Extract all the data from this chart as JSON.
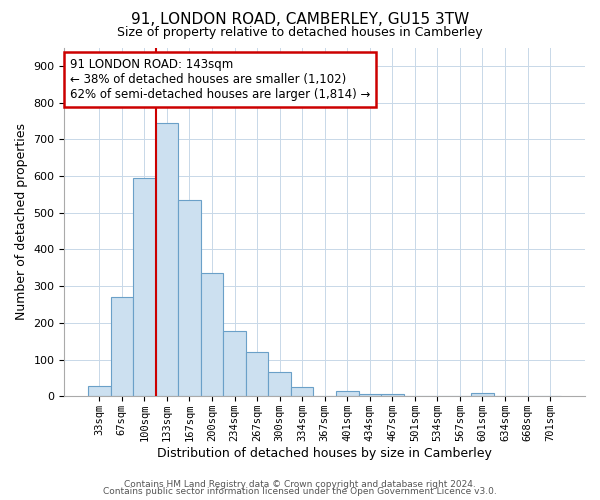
{
  "title": "91, LONDON ROAD, CAMBERLEY, GU15 3TW",
  "subtitle": "Size of property relative to detached houses in Camberley",
  "xlabel": "Distribution of detached houses by size in Camberley",
  "ylabel": "Number of detached properties",
  "bar_labels": [
    "33sqm",
    "67sqm",
    "100sqm",
    "133sqm",
    "167sqm",
    "200sqm",
    "234sqm",
    "267sqm",
    "300sqm",
    "334sqm",
    "367sqm",
    "401sqm",
    "434sqm",
    "467sqm",
    "501sqm",
    "534sqm",
    "567sqm",
    "601sqm",
    "634sqm",
    "668sqm",
    "701sqm"
  ],
  "bar_values": [
    27,
    270,
    595,
    745,
    535,
    337,
    177,
    120,
    65,
    25,
    0,
    15,
    5,
    5,
    0,
    0,
    0,
    8,
    0,
    0,
    0
  ],
  "bar_color": "#cce0f0",
  "bar_edge_color": "#6aa0c8",
  "vline_color": "#cc0000",
  "annotation_title": "91 LONDON ROAD: 143sqm",
  "annotation_line1": "← 38% of detached houses are smaller (1,102)",
  "annotation_line2": "62% of semi-detached houses are larger (1,814) →",
  "annotation_box_color": "#ffffff",
  "annotation_box_edge": "#cc0000",
  "ylim": [
    0,
    950
  ],
  "yticks": [
    0,
    100,
    200,
    300,
    400,
    500,
    600,
    700,
    800,
    900
  ],
  "footer1": "Contains HM Land Registry data © Crown copyright and database right 2024.",
  "footer2": "Contains public sector information licensed under the Open Government Licence v3.0.",
  "background_color": "#ffffff",
  "grid_color": "#c8d8e8",
  "title_fontsize": 11,
  "subtitle_fontsize": 9,
  "xlabel_fontsize": 9,
  "ylabel_fontsize": 9,
  "tick_fontsize": 8,
  "xtick_fontsize": 7.5,
  "annotation_fontsize": 8.5,
  "footer_fontsize": 6.5
}
